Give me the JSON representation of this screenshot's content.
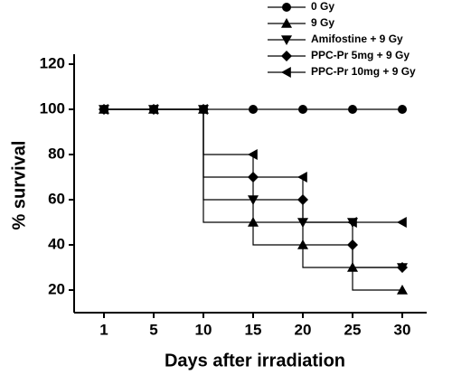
{
  "chart_data": {
    "type": "step",
    "x_label": "Days after irradiation",
    "y_label": "% survival",
    "categories": [
      "1",
      "5",
      "10",
      "15",
      "20",
      "25",
      "30"
    ],
    "ylim": [
      10,
      120
    ],
    "yticks": [
      20,
      40,
      60,
      80,
      100,
      120
    ],
    "series": [
      {
        "name": "0 Gy",
        "color": "#000000",
        "marker": "circle",
        "values": [
          100,
          100,
          100,
          100,
          100,
          100,
          100
        ]
      },
      {
        "name": "9 Gy",
        "color": "#000000",
        "marker": "triangle-up",
        "values": [
          100,
          100,
          100,
          50,
          40,
          30,
          20
        ]
      },
      {
        "name": "Amifostine + 9 Gy",
        "color": "#000000",
        "marker": "triangle-down",
        "values": [
          100,
          100,
          100,
          60,
          50,
          50,
          30
        ]
      },
      {
        "name": "PPC-Pr 5mg + 9 Gy",
        "color": "#000000",
        "marker": "diamond",
        "values": [
          100,
          100,
          100,
          70,
          60,
          40,
          30
        ]
      },
      {
        "name": "PPC-Pr 10mg + 9 Gy",
        "color": "#000000",
        "marker": "triangle-left",
        "values": [
          100,
          100,
          100,
          80,
          70,
          50,
          50
        ]
      }
    ]
  }
}
